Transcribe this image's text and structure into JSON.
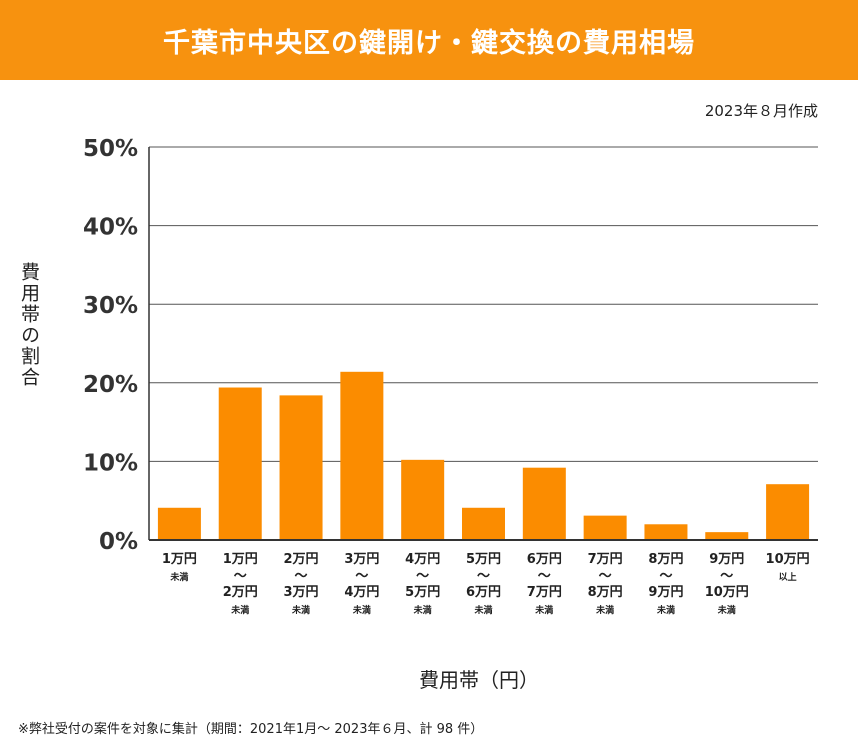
{
  "header": {
    "title": "千葉市中央区の鍵開け・鍵交換の費用相場"
  },
  "created_date": "2023年８月作成",
  "footnote": "※弊社受付の案件を対象に集計（期間：2021年1月～ 2023年６月、計 98 件）",
  "colors": {
    "header_bg": "#f7920f",
    "bar": "#fb8c00",
    "grid": "#555555"
  },
  "chart_data": {
    "type": "bar",
    "title": "千葉市中央区の鍵開け・鍵交換の費用相場",
    "xlabel": "費用帯（円）",
    "ylabel": "費用帯の割合",
    "ylim": [
      0,
      50
    ],
    "yticks": [
      "0%",
      "10%",
      "20%",
      "30%",
      "40%",
      "50%"
    ],
    "grid": true,
    "categories": [
      {
        "lines": [
          "1万円",
          "未満"
        ]
      },
      {
        "lines": [
          "1万円",
          "〜",
          "2万円",
          "未満"
        ]
      },
      {
        "lines": [
          "2万円",
          "〜",
          "3万円",
          "未満"
        ]
      },
      {
        "lines": [
          "3万円",
          "〜",
          "4万円",
          "未満"
        ]
      },
      {
        "lines": [
          "4万円",
          "〜",
          "5万円",
          "未満"
        ]
      },
      {
        "lines": [
          "5万円",
          "〜",
          "6万円",
          "未満"
        ]
      },
      {
        "lines": [
          "6万円",
          "〜",
          "7万円",
          "未満"
        ]
      },
      {
        "lines": [
          "7万円",
          "〜",
          "8万円",
          "未満"
        ]
      },
      {
        "lines": [
          "8万円",
          "〜",
          "9万円",
          "未満"
        ]
      },
      {
        "lines": [
          "9万円",
          "〜",
          "10万円",
          "未満"
        ]
      },
      {
        "lines": [
          "10万円",
          "以上"
        ]
      }
    ],
    "values": [
      4.1,
      19.4,
      18.4,
      21.4,
      10.2,
      4.1,
      9.2,
      3.1,
      2.0,
      1.0,
      7.1
    ]
  }
}
